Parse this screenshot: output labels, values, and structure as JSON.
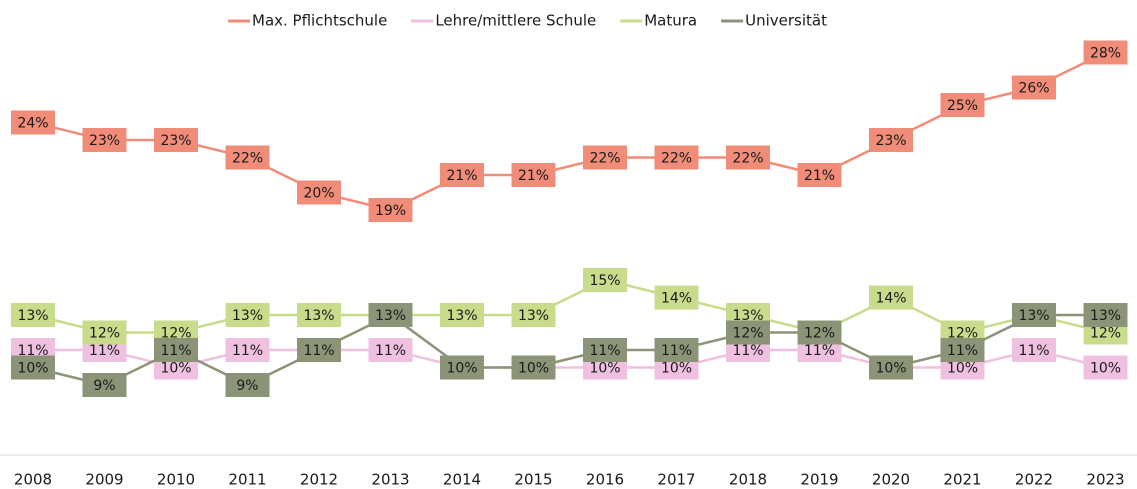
{
  "chart_data": {
    "type": "line",
    "categories": [
      "2008",
      "2009",
      "2010",
      "2011",
      "2012",
      "2013",
      "2014",
      "2015",
      "2016",
      "2017",
      "2018",
      "2019",
      "2020",
      "2021",
      "2022",
      "2023"
    ],
    "ylim": [
      5,
      31
    ],
    "series": [
      {
        "name": "Max. Pflichtschule",
        "color": "#f08c78",
        "values": [
          24,
          23,
          23,
          22,
          20,
          19,
          21,
          21,
          22,
          22,
          22,
          21,
          23,
          25,
          26,
          28
        ],
        "value_labels": [
          "24%",
          "23%",
          "23%",
          "22%",
          "20%",
          "19%",
          "21%",
          "21%",
          "22%",
          "22%",
          "22%",
          "21%",
          "23%",
          "25%",
          "26%",
          "28%"
        ]
      },
      {
        "name": "Lehre/mittlere Schule",
        "color": "#f0c0e0",
        "values": [
          11,
          11,
          10,
          11,
          11,
          11,
          10,
          10,
          10,
          10,
          11,
          11,
          10,
          10,
          11,
          10
        ],
        "value_labels": [
          "11%",
          "11%",
          "10%",
          "11%",
          "11%",
          "11%",
          "10%",
          "10%",
          "10%",
          "10%",
          "11%",
          "11%",
          "10%",
          "10%",
          "11%",
          "10%"
        ]
      },
      {
        "name": "Matura",
        "color": "#c8dc8c",
        "values": [
          13,
          12,
          12,
          13,
          13,
          13,
          13,
          13,
          15,
          14,
          13,
          12,
          14,
          12,
          13,
          12
        ],
        "value_labels": [
          "13%",
          "12%",
          "12%",
          "13%",
          "13%",
          "13%",
          "13%",
          "13%",
          "15%",
          "14%",
          "13%",
          "12%",
          "14%",
          "12%",
          "13%",
          "12%"
        ]
      },
      {
        "name": "Universität",
        "color": "#8c9478",
        "values": [
          10,
          9,
          11,
          9,
          11,
          13,
          10,
          10,
          11,
          11,
          12,
          12,
          10,
          11,
          13,
          13
        ],
        "value_labels": [
          "10%",
          "9%",
          "11%",
          "9%",
          "11%",
          "13%",
          "10%",
          "10%",
          "11%",
          "11%",
          "12%",
          "12%",
          "10%",
          "11%",
          "13%",
          "13%"
        ]
      }
    ]
  }
}
